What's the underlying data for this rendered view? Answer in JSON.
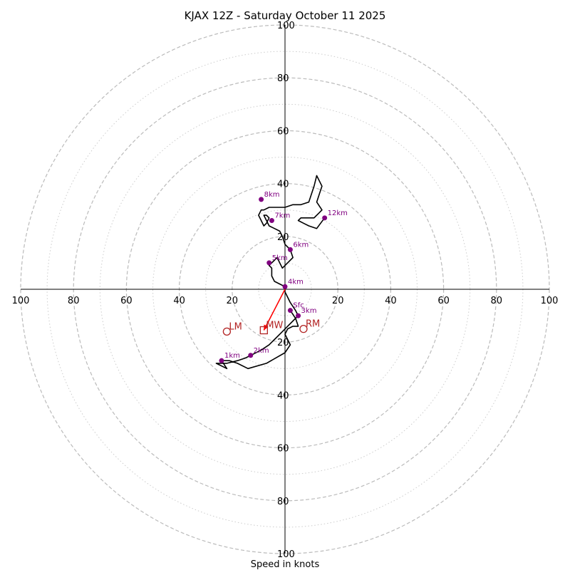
{
  "chart_data": {
    "type": "hodograph",
    "title": "KJAX 12Z - Saturday October 11 2025",
    "xlabel": "Speed in knots",
    "range_max": 100,
    "major_rings": [
      20,
      40,
      60,
      80,
      100
    ],
    "minor_rings": [
      10,
      30,
      50,
      70,
      90
    ],
    "x_ticks": [
      {
        "value": -100,
        "label": "100"
      },
      {
        "value": -80,
        "label": "80"
      },
      {
        "value": -60,
        "label": "60"
      },
      {
        "value": -40,
        "label": "40"
      },
      {
        "value": -20,
        "label": "20"
      },
      {
        "value": 20,
        "label": "20"
      },
      {
        "value": 40,
        "label": "40"
      },
      {
        "value": 60,
        "label": "60"
      },
      {
        "value": 80,
        "label": "80"
      },
      {
        "value": 100,
        "label": "100"
      }
    ],
    "y_ticks": [
      {
        "value": 100,
        "label": "100"
      },
      {
        "value": 80,
        "label": "80"
      },
      {
        "value": 60,
        "label": "60"
      },
      {
        "value": 40,
        "label": "40"
      },
      {
        "value": 20,
        "label": "20"
      },
      {
        "value": -20,
        "label": "20"
      },
      {
        "value": -40,
        "label": "40"
      },
      {
        "value": -60,
        "label": "60"
      },
      {
        "value": -80,
        "label": "80"
      },
      {
        "value": -100,
        "label": "100"
      }
    ],
    "trace": [
      [
        2,
        -8
      ],
      [
        4,
        -11
      ],
      [
        5,
        -14
      ],
      [
        3,
        -14
      ],
      [
        1,
        -15
      ],
      [
        0,
        -17
      ],
      [
        1,
        -19
      ],
      [
        2,
        -21
      ],
      [
        0,
        -24
      ],
      [
        -7,
        -28
      ],
      [
        -14,
        -30
      ],
      [
        -18,
        -28
      ],
      [
        -21,
        -27
      ],
      [
        -24,
        -27
      ],
      [
        -22,
        -30
      ],
      [
        -26,
        -28
      ],
      [
        -22,
        -28
      ],
      [
        -18,
        -27
      ],
      [
        -15,
        -26
      ],
      [
        -13,
        -25
      ],
      [
        -9,
        -23
      ],
      [
        -6,
        -21
      ],
      [
        -4,
        -19
      ],
      [
        -1,
        -16
      ],
      [
        1,
        -14
      ],
      [
        3,
        -12
      ],
      [
        5,
        -10
      ],
      [
        4,
        -8
      ],
      [
        2,
        -5
      ],
      [
        1,
        -3
      ],
      [
        0,
        -1
      ],
      [
        0,
        1
      ],
      [
        -2,
        2
      ],
      [
        -4,
        3
      ],
      [
        -5,
        5
      ],
      [
        -5,
        8
      ],
      [
        -6,
        9
      ],
      [
        -5,
        10
      ],
      [
        -3,
        12
      ],
      [
        -2,
        10
      ],
      [
        -1,
        8
      ],
      [
        1,
        10
      ],
      [
        3,
        12
      ],
      [
        2,
        15
      ],
      [
        0,
        17
      ],
      [
        -1,
        20
      ],
      [
        -2,
        22
      ],
      [
        -4,
        23
      ],
      [
        -6,
        24
      ],
      [
        -7,
        26
      ],
      [
        -8,
        28
      ],
      [
        -7,
        28
      ],
      [
        -6,
        27
      ],
      [
        -7,
        25
      ],
      [
        -8,
        24
      ],
      [
        -9,
        26
      ],
      [
        -10,
        28
      ],
      [
        -9,
        30
      ],
      [
        -8,
        30
      ],
      [
        -6,
        31
      ],
      [
        -4,
        31
      ],
      [
        -2,
        31
      ],
      [
        0,
        31
      ],
      [
        3,
        32
      ],
      [
        6,
        32
      ],
      [
        9,
        33
      ],
      [
        11,
        39
      ],
      [
        12,
        43
      ],
      [
        14,
        39
      ],
      [
        13,
        36
      ],
      [
        12,
        33
      ],
      [
        14,
        30
      ],
      [
        13,
        29
      ],
      [
        11,
        27
      ],
      [
        9,
        27
      ],
      [
        6,
        27
      ],
      [
        5,
        26
      ],
      [
        7,
        25
      ],
      [
        9,
        24
      ],
      [
        12,
        23
      ],
      [
        15,
        27
      ]
    ],
    "height_points": [
      {
        "label": "Sfc",
        "u": 2,
        "v": -8
      },
      {
        "label": "1km",
        "u": -24,
        "v": -27
      },
      {
        "label": "2km",
        "u": -13,
        "v": -25
      },
      {
        "label": "3km",
        "u": 5,
        "v": -10
      },
      {
        "label": "4km",
        "u": 0,
        "v": 1
      },
      {
        "label": "5km",
        "u": -6,
        "v": 10
      },
      {
        "label": "6km",
        "u": 2,
        "v": 15
      },
      {
        "label": "7km",
        "u": -5,
        "v": 26
      },
      {
        "label": "8km",
        "u": -9,
        "v": 34
      },
      {
        "label": "12km",
        "u": 15,
        "v": 27
      }
    ],
    "motion_markers": [
      {
        "label": "LM",
        "u": -22,
        "v": -16,
        "shape": "circle"
      },
      {
        "label": "MW",
        "u": -8,
        "v": -15.5,
        "shape": "square"
      },
      {
        "label": "RM",
        "u": 7,
        "v": -15,
        "shape": "circle"
      }
    ],
    "shear_vector": {
      "from": [
        0,
        0
      ],
      "to": [
        -8,
        -15.5
      ]
    },
    "colors": {
      "trace": "#000000",
      "height_points": "#800080",
      "motion": "#b22222",
      "shear": "#ff0000",
      "grid": "#bbbbbb"
    }
  }
}
